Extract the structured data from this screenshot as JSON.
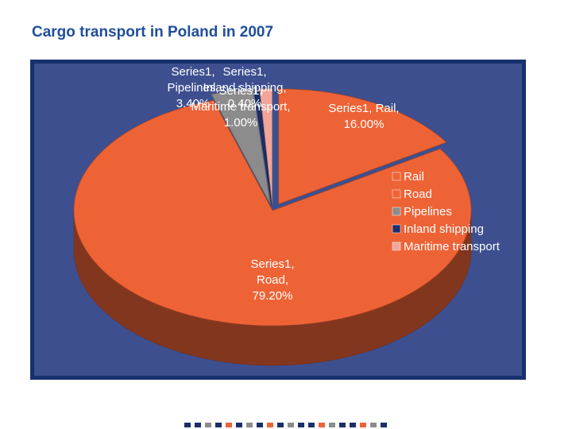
{
  "slide": {
    "title": "Cargo transport in Poland in 2007"
  },
  "chart_data": {
    "type": "pie",
    "style": "3d-exploded",
    "title": "",
    "series_name": "Series1",
    "categories": [
      "Rail",
      "Road",
      "Pipelines",
      "Inland shipping",
      "Maritime transport"
    ],
    "values": [
      16.0,
      79.2,
      3.4,
      0.4,
      1.0
    ],
    "unit": "%",
    "colors": {
      "Rail": "#ee6336",
      "Road": "#ee6336",
      "Pipelines": "#8c8c8c",
      "Inland shipping": "#1a2f6b",
      "Maritime transport": "#f0a59b"
    },
    "data_labels": [
      {
        "lines": [
          "Series1, Rail,",
          "16.00%"
        ]
      },
      {
        "lines": [
          "Series1,",
          "Road,",
          "79.20%"
        ]
      },
      {
        "lines": [
          "Series1,",
          "Pipelines,",
          "3.40%"
        ]
      },
      {
        "lines": [
          "Series1,",
          "Inland shipping,",
          "0.40%"
        ]
      },
      {
        "lines": [
          "Series1,",
          "Maritime transport,",
          "1.00%"
        ]
      }
    ],
    "legend": {
      "placement": "right",
      "entries": [
        "Rail",
        "Road",
        "Pipelines",
        "Inland shipping",
        "Maritime transport"
      ]
    },
    "background_color": "#3d4f8f",
    "border_color": "#17306e"
  },
  "footer": {
    "dash_colors": [
      "#1a2f6b",
      "#1a2f6b",
      "#8c8c8c",
      "#1a2f6b",
      "#ee6336",
      "#1a2f6b",
      "#8c8c8c",
      "#1a2f6b",
      "#ee6336",
      "#1a2f6b",
      "#8c8c8c",
      "#1a2f6b",
      "#1a2f6b",
      "#ee6336",
      "#8c8c8c",
      "#1a2f6b",
      "#1a2f6b",
      "#ee6336",
      "#8c8c8c",
      "#1a2f6b"
    ]
  }
}
